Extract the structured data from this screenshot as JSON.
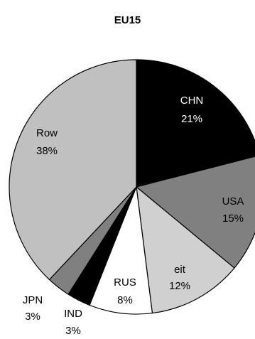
{
  "chart_data": {
    "type": "pie",
    "title": "EU15",
    "slices": [
      {
        "label": "CHN",
        "value": 21,
        "value_label": "21%",
        "color": "#000000",
        "text_color": "#ffffff"
      },
      {
        "label": "USA",
        "value": 15,
        "value_label": "15%",
        "color": "#808080",
        "text_color": "#000000"
      },
      {
        "label": "eit",
        "value": 12,
        "value_label": "12%",
        "color": "#d0d0d0",
        "text_color": "#000000"
      },
      {
        "label": "RUS",
        "value": 8,
        "value_label": "8%",
        "color": "#ffffff",
        "text_color": "#000000"
      },
      {
        "label": "IND",
        "value": 3,
        "value_label": "3%",
        "color": "#000000",
        "text_color": "#000000"
      },
      {
        "label": "JPN",
        "value": 3,
        "value_label": "3%",
        "color": "#808080",
        "text_color": "#000000"
      },
      {
        "label": "Row",
        "value": 38,
        "value_label": "38%",
        "color": "#c0c0c0",
        "text_color": "#000000"
      }
    ]
  }
}
